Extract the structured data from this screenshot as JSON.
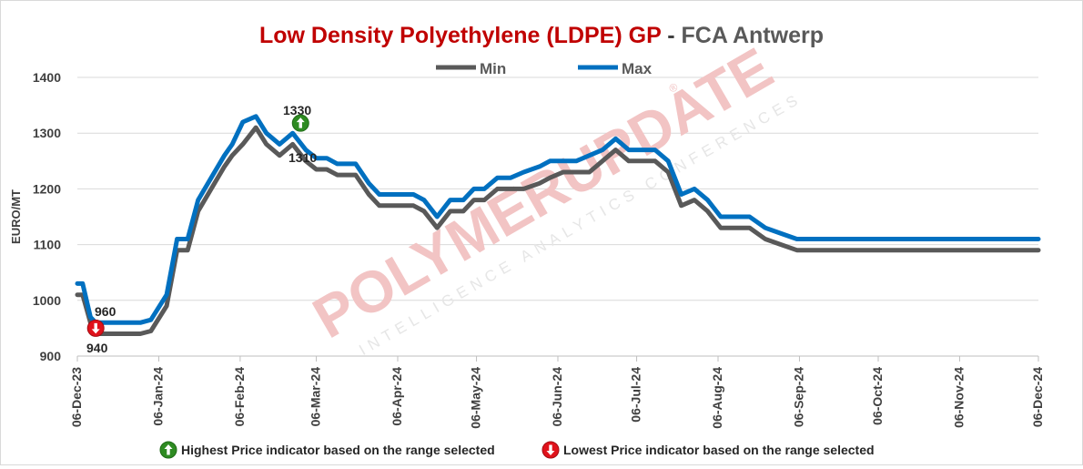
{
  "chart_data": {
    "type": "line",
    "title_main": "Low Density Polyethylene (LDPE) GP",
    "title_sep": " - ",
    "title_sub": "FCA Antwerp",
    "ylabel": "EURO/MT",
    "xlabel": "",
    "ylim": [
      900,
      1400
    ],
    "y_ticks": [
      900,
      1000,
      1100,
      1200,
      1300,
      1400
    ],
    "x_tick_labels": [
      "06-Dec-23",
      "06-Jan-24",
      "06-Feb-24",
      "06-Mar-24",
      "06-Apr-24",
      "06-May-24",
      "06-Jun-24",
      "06-Jul-24",
      "06-Aug-24",
      "06-Sep-24",
      "06-Oct-24",
      "06-Nov-24",
      "06-Dec-24"
    ],
    "x_tick_days": [
      0,
      31,
      62,
      91,
      122,
      152,
      183,
      213,
      244,
      275,
      305,
      336,
      366
    ],
    "grid": true,
    "legend_position": "top-center",
    "colors": {
      "Min": "#595959",
      "Max": "#0070c0",
      "high": "#2e8b22",
      "low": "#e0121b",
      "title": "#c00000"
    },
    "series": [
      {
        "name": "Min",
        "x_days": [
          0,
          2,
          5,
          7,
          10,
          15,
          19,
          22,
          24,
          28,
          34,
          38,
          42,
          46,
          51,
          56,
          59,
          63,
          68,
          72,
          77,
          82,
          87,
          91,
          95,
          99,
          102,
          106,
          111,
          115,
          119,
          124,
          128,
          132,
          137,
          142,
          147,
          151,
          155,
          160,
          165,
          170,
          176,
          180,
          185,
          190,
          195,
          200,
          205,
          210,
          215,
          220,
          225,
          230,
          235,
          240,
          245,
          250,
          256,
          262,
          268,
          274,
          278,
          282,
          290,
          295,
          299,
          303,
          305,
          308,
          312,
          317,
          322,
          326,
          332,
          337,
          345,
          351,
          358,
          366
        ],
        "values": [
          1010,
          1010,
          960,
          940,
          940,
          940,
          940,
          940,
          940,
          945,
          990,
          1090,
          1090,
          1160,
          1200,
          1240,
          1260,
          1280,
          1310,
          1280,
          1260,
          1280,
          1250,
          1235,
          1235,
          1225,
          1225,
          1225,
          1190,
          1170,
          1170,
          1170,
          1170,
          1160,
          1130,
          1160,
          1160,
          1180,
          1180,
          1200,
          1200,
          1200,
          1210,
          1220,
          1230,
          1230,
          1230,
          1250,
          1270,
          1250,
          1250,
          1250,
          1230,
          1170,
          1180,
          1160,
          1130,
          1130,
          1130,
          1110,
          1100,
          1090,
          1090,
          1090,
          1090,
          1090,
          1090,
          1090,
          1090,
          1090,
          1090,
          1090,
          1090,
          1090,
          1090,
          1090,
          1090,
          1090,
          1090,
          1090
        ]
      },
      {
        "name": "Max",
        "x_days": [
          0,
          2,
          5,
          7,
          10,
          15,
          19,
          22,
          24,
          28,
          34,
          38,
          42,
          46,
          51,
          56,
          59,
          63,
          68,
          72,
          77,
          82,
          87,
          91,
          95,
          99,
          102,
          106,
          111,
          115,
          119,
          124,
          128,
          132,
          137,
          142,
          147,
          151,
          155,
          160,
          165,
          170,
          176,
          180,
          185,
          190,
          195,
          200,
          205,
          210,
          215,
          220,
          225,
          230,
          235,
          240,
          245,
          250,
          256,
          262,
          268,
          274,
          278,
          282,
          290,
          295,
          299,
          303,
          305,
          308,
          312,
          317,
          322,
          326,
          332,
          337,
          345,
          351,
          358,
          366
        ],
        "values": [
          1030,
          1030,
          970,
          960,
          960,
          960,
          960,
          960,
          960,
          965,
          1010,
          1110,
          1110,
          1180,
          1220,
          1260,
          1280,
          1320,
          1330,
          1300,
          1280,
          1300,
          1270,
          1255,
          1255,
          1245,
          1245,
          1245,
          1210,
          1190,
          1190,
          1190,
          1190,
          1180,
          1150,
          1180,
          1180,
          1200,
          1200,
          1220,
          1220,
          1230,
          1240,
          1250,
          1250,
          1250,
          1260,
          1270,
          1290,
          1270,
          1270,
          1270,
          1250,
          1190,
          1200,
          1180,
          1150,
          1150,
          1150,
          1130,
          1120,
          1110,
          1110,
          1110,
          1110,
          1110,
          1110,
          1110,
          1110,
          1110,
          1110,
          1110,
          1110,
          1110,
          1110,
          1110,
          1110,
          1110,
          1110,
          1110
        ]
      }
    ],
    "annotations": {
      "high": {
        "day": 85,
        "value": 1318,
        "max_label": "1330",
        "min_label": "1310"
      },
      "low": {
        "day": 7,
        "value": 950,
        "max_label": "960",
        "min_label": "940"
      }
    }
  },
  "footer": {
    "high_text": "Highest Price indicator based on the range selected",
    "low_text": "Lowest Price indicator based on the range selected"
  },
  "watermark": {
    "brand": "POLYMERUPDATE",
    "tagline": "INTELLIGENCE  ANALYTICS  CONFERENCES",
    "reg": "®"
  },
  "icons": {
    "up": "arrow-up-circle-icon",
    "down": "arrow-down-circle-icon"
  }
}
